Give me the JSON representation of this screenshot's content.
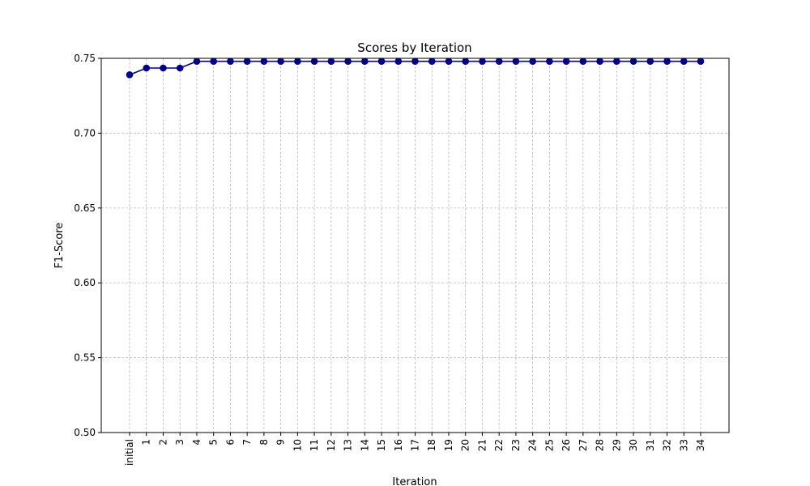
{
  "chart_data": {
    "type": "line",
    "title": "Scores by Iteration",
    "xlabel": "Iteration",
    "ylabel": "F1-Score",
    "ylim": [
      0.5,
      0.75
    ],
    "yticks": [
      "0.50",
      "0.55",
      "0.60",
      "0.65",
      "0.70",
      "0.75"
    ],
    "grid": true,
    "categories": [
      "initial",
      "1",
      "2",
      "3",
      "4",
      "5",
      "6",
      "7",
      "8",
      "9",
      "10",
      "11",
      "12",
      "13",
      "14",
      "15",
      "16",
      "17",
      "18",
      "19",
      "20",
      "21",
      "22",
      "23",
      "24",
      "25",
      "26",
      "27",
      "28",
      "29",
      "30",
      "31",
      "32",
      "33",
      "34"
    ],
    "series": [
      {
        "color": "#00008b",
        "values": [
          0.739,
          0.7435,
          0.7435,
          0.7435,
          0.748,
          0.748,
          0.748,
          0.748,
          0.748,
          0.748,
          0.748,
          0.748,
          0.748,
          0.748,
          0.748,
          0.748,
          0.748,
          0.748,
          0.748,
          0.748,
          0.748,
          0.748,
          0.748,
          0.748,
          0.748,
          0.748,
          0.748,
          0.748,
          0.748,
          0.748,
          0.748,
          0.748,
          0.748,
          0.748,
          0.748
        ]
      }
    ]
  }
}
